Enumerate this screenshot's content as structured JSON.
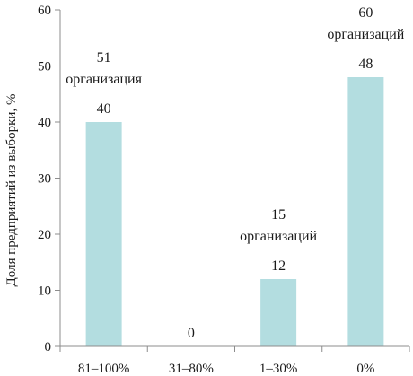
{
  "chart_data": {
    "type": "bar",
    "title": "",
    "xlabel": "",
    "ylabel": "Доля предприятий из выборки, %",
    "ylim": [
      0,
      60
    ],
    "yticks": [
      0,
      10,
      20,
      30,
      40,
      50,
      60
    ],
    "grid": false,
    "legend": "none",
    "categories": [
      "81–100%",
      "31–80%",
      "1–30%",
      "0%"
    ],
    "values": [
      40,
      0,
      12,
      48
    ],
    "data_labels": [
      "40",
      "0",
      "12",
      "48"
    ],
    "annotations": [
      {
        "category": "81–100%",
        "lines": [
          "51",
          "организация"
        ]
      },
      {
        "category": "31–80%",
        "lines": []
      },
      {
        "category": "1–30%",
        "lines": [
          "15",
          "организаций"
        ]
      },
      {
        "category": "0%",
        "lines": [
          "60",
          "организаций"
        ]
      }
    ],
    "colors": {
      "bar": "#b3dde0",
      "axis": "#8c8c8c",
      "text": "#1a1a1a"
    }
  }
}
